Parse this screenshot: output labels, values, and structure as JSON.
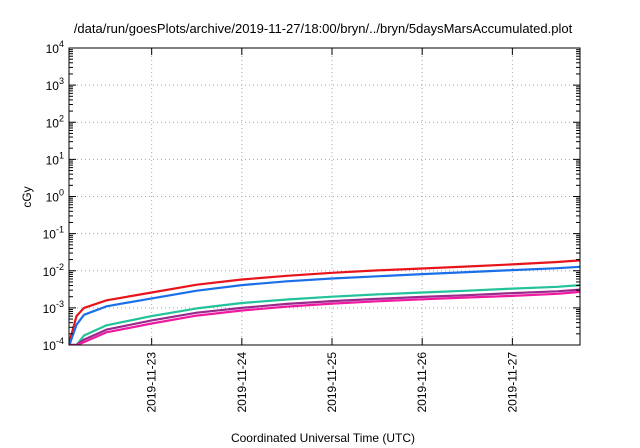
{
  "chart_data": {
    "type": "line",
    "title": "/data/run/goesPlots/archive/2019-11-27/18:00/bryn/../bryn/5daysMarsAccumulated.plot",
    "xlabel": "Coordinated Universal Time (UTC)",
    "ylabel": "cGy",
    "yscale": "log",
    "ylim": [
      0.0001,
      10000
    ],
    "xlim": [
      "2019-11-22 02:00",
      "2019-11-27 18:00"
    ],
    "grid": true,
    "legend": "none",
    "x_ticks": [
      {
        "label": "2019-11-23",
        "x": "2019-11-23 00:00"
      },
      {
        "label": "2019-11-24",
        "x": "2019-11-24 00:00"
      },
      {
        "label": "2019-11-25",
        "x": "2019-11-25 00:00"
      },
      {
        "label": "2019-11-26",
        "x": "2019-11-26 00:00"
      },
      {
        "label": "2019-11-27",
        "x": "2019-11-27 00:00"
      }
    ],
    "y_ticks": [
      {
        "mant": "10",
        "exp": "-4",
        "value": 0.0001
      },
      {
        "mant": "10",
        "exp": "-3",
        "value": 0.001
      },
      {
        "mant": "10",
        "exp": "-2",
        "value": 0.01
      },
      {
        "mant": "10",
        "exp": "-1",
        "value": 0.1
      },
      {
        "mant": "10",
        "exp": "0",
        "value": 1
      },
      {
        "mant": "10",
        "exp": "1",
        "value": 10
      },
      {
        "mant": "10",
        "exp": "2",
        "value": 100
      },
      {
        "mant": "10",
        "exp": "3",
        "value": 1000
      },
      {
        "mant": "10",
        "exp": "4",
        "value": 10000
      }
    ],
    "x": [
      "2019-11-22 02:06",
      "2019-11-22 04:00",
      "2019-11-22 06:00",
      "2019-11-22 12:00",
      "2019-11-23 00:00",
      "2019-11-23 12:00",
      "2019-11-24 00:00",
      "2019-11-24 12:00",
      "2019-11-25 00:00",
      "2019-11-25 12:00",
      "2019-11-26 00:00",
      "2019-11-26 12:00",
      "2019-11-27 00:00",
      "2019-11-27 12:00",
      "2019-11-27 18:00"
    ],
    "series": [
      {
        "color": "#e8141b",
        "values": [
          0.00012,
          0.0006,
          0.001,
          0.0016,
          0.0026,
          0.0042,
          0.0058,
          0.0073,
          0.0088,
          0.0102,
          0.0115,
          0.013,
          0.0148,
          0.0172,
          0.019
        ]
      },
      {
        "color": "#1a6fe8",
        "values": [
          0.0001,
          0.00035,
          0.00065,
          0.0011,
          0.0018,
          0.0029,
          0.0041,
          0.0052,
          0.0062,
          0.0071,
          0.0081,
          0.0092,
          0.0104,
          0.0117,
          0.0128
        ]
      },
      {
        "color": "#22c29a",
        "values": [
          0.0001,
          0.0001,
          0.00018,
          0.00034,
          0.0006,
          0.00097,
          0.00135,
          0.00168,
          0.002,
          0.0023,
          0.0026,
          0.0029,
          0.0033,
          0.0037,
          0.0041
        ]
      },
      {
        "color": "#9a2a8e",
        "values": [
          0.0001,
          0.0001,
          0.00014,
          0.00026,
          0.00046,
          0.00074,
          0.001,
          0.00128,
          0.00152,
          0.00175,
          0.00198,
          0.0022,
          0.0025,
          0.0028,
          0.0031
        ]
      },
      {
        "color": "#f01aa0",
        "values": [
          0.0001,
          0.0001,
          0.00012,
          0.00022,
          0.00038,
          0.00062,
          0.00085,
          0.00108,
          0.0013,
          0.0015,
          0.0017,
          0.0019,
          0.0021,
          0.0024,
          0.0027
        ]
      }
    ]
  }
}
